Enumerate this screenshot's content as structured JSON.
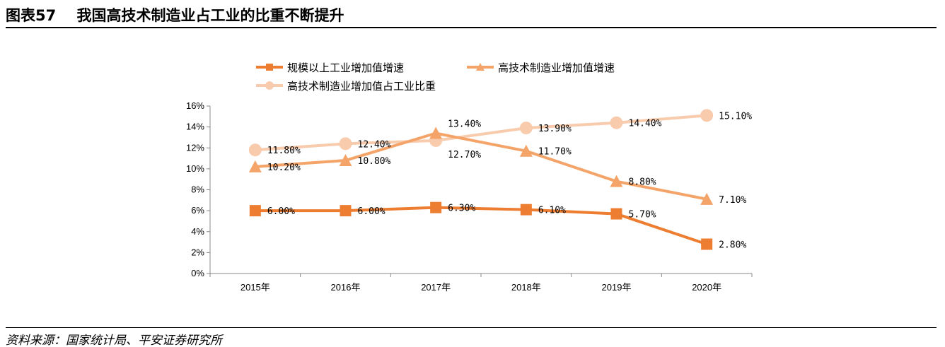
{
  "header": {
    "title": "图表57    我国高技术制造业占工业的比重不断提升"
  },
  "footer": {
    "source": "资料来源：国家统计局、平安证券研究所"
  },
  "chart_data": {
    "type": "line",
    "categories": [
      "2015年",
      "2016年",
      "2017年",
      "2018年",
      "2019年",
      "2020年"
    ],
    "ylim": [
      0,
      16
    ],
    "yticks": [
      "0%",
      "2%",
      "4%",
      "6%",
      "8%",
      "10%",
      "12%",
      "14%",
      "16%"
    ],
    "legend_position": "top",
    "grid": false,
    "series": [
      {
        "name": "规模以上工业增加值增速",
        "marker": "square",
        "color": "#ED7D31",
        "values": [
          6.0,
          6.0,
          6.3,
          6.1,
          5.7,
          2.8
        ],
        "labels": [
          "6.00%",
          "6.00%",
          "6.30%",
          "6.10%",
          "5.70%",
          "2.80%"
        ]
      },
      {
        "name": "高技术制造业增加值增速",
        "marker": "triangle",
        "color": "#F4A469",
        "values": [
          10.2,
          10.8,
          13.4,
          11.7,
          8.8,
          7.1
        ],
        "labels": [
          "10.20%",
          "10.80%",
          "13.40%",
          "11.70%",
          "8.80%",
          "7.10%"
        ]
      },
      {
        "name": "高技术制造业增加值占工业比重",
        "marker": "circle",
        "color": "#F8CBAD",
        "values": [
          11.8,
          12.4,
          12.7,
          13.9,
          14.4,
          15.1
        ],
        "labels": [
          "11.80%",
          "12.40%",
          "12.70%",
          "13.90%",
          "14.40%",
          "15.10%"
        ]
      }
    ]
  }
}
